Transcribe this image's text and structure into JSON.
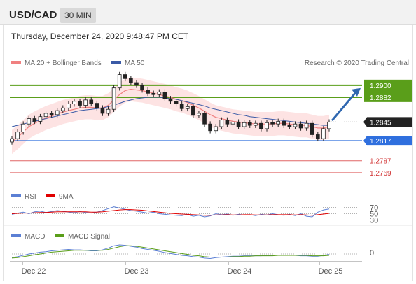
{
  "header": {
    "pair": "USD/CAD",
    "timeframe": "30 MIN"
  },
  "timestamp": "Thursday, December 24, 2020 9:48:47 PM CET",
  "legend": {
    "ma20_bb": "MA 20 + Bollinger Bands",
    "ma50": "MA 50",
    "research": "Research © 2020 Trading Central",
    "rsi": "RSI",
    "rsi_ma": "9MA",
    "macd": "MACD",
    "macd_signal": "MACD Signal"
  },
  "colors": {
    "ma20": "#f08080",
    "ma50": "#3a5aa6",
    "bands": "#fde0e0",
    "resistance": "#5a9e1a",
    "pivot": "#2f6fde",
    "support": "#e06666",
    "up_candle": "#ffffff",
    "down_candle": "#222222",
    "arrow": "#2f67b0"
  },
  "chart_data": [
    {
      "type": "candlestick",
      "pair": "USD/CAD",
      "x_ticks": [
        "Dec 22",
        "Dec 23",
        "Dec 24",
        "Dec 25"
      ],
      "ylim": [
        1.275,
        1.2925
      ],
      "last_price": 1.2845,
      "levels": {
        "resistance": [
          1.29,
          1.2882
        ],
        "pivot": 1.2817,
        "support": [
          1.2787,
          1.2769
        ]
      },
      "close": [
        1.282,
        1.283,
        1.2842,
        1.285,
        1.2846,
        1.2853,
        1.2858,
        1.2856,
        1.2862,
        1.2866,
        1.2872,
        1.2876,
        1.287,
        1.2878,
        1.2873,
        1.2866,
        1.2858,
        1.2864,
        1.2896,
        1.2916,
        1.291,
        1.2904,
        1.29,
        1.2893,
        1.2888,
        1.2886,
        1.289,
        1.288,
        1.2876,
        1.2872,
        1.2865,
        1.2868,
        1.2855,
        1.2858,
        1.2842,
        1.2832,
        1.2838,
        1.2848,
        1.2842,
        1.2845,
        1.2838,
        1.2844,
        1.284,
        1.2843,
        1.2835,
        1.2844,
        1.2842,
        1.2846,
        1.284,
        1.2838,
        1.2842,
        1.2836,
        1.2843,
        1.2826,
        1.282,
        1.2835,
        1.2845
      ],
      "ma20": [
        1.2815,
        1.2822,
        1.283,
        1.2838,
        1.2843,
        1.2847,
        1.2851,
        1.2854,
        1.2857,
        1.286,
        1.2862,
        1.2864,
        1.2866,
        1.2867,
        1.2867,
        1.2866,
        1.2866,
        1.287,
        1.2878,
        1.2886,
        1.2892,
        1.2894,
        1.2893,
        1.2892,
        1.289,
        1.2888,
        1.2886,
        1.2884,
        1.2882,
        1.2879,
        1.2877,
        1.2874,
        1.287,
        1.2866,
        1.2861,
        1.2856,
        1.2852,
        1.285,
        1.2848,
        1.2846,
        1.2845,
        1.2844,
        1.2843,
        1.2842,
        1.2842,
        1.2842,
        1.2842,
        1.2843,
        1.2843,
        1.2842,
        1.2841,
        1.284,
        1.284,
        1.2838,
        1.2836,
        1.2836,
        1.2838
      ],
      "ma50": [
        1.2838,
        1.284,
        1.2842,
        1.2844,
        1.2846,
        1.2848,
        1.285,
        1.2852,
        1.2854,
        1.2856,
        1.2858,
        1.286,
        1.2862,
        1.2863,
        1.2864,
        1.2865,
        1.2866,
        1.2868,
        1.287,
        1.2873,
        1.2876,
        1.2878,
        1.288,
        1.2881,
        1.2882,
        1.2882,
        1.2882,
        1.2881,
        1.288,
        1.2879,
        1.2877,
        1.2875,
        1.2873,
        1.2871,
        1.2869,
        1.2866,
        1.2864,
        1.2862,
        1.286,
        1.2858,
        1.2856,
        1.2855,
        1.2853,
        1.2852,
        1.2851,
        1.285,
        1.2849,
        1.2848,
        1.2847,
        1.2846,
        1.2845,
        1.2844,
        1.2843,
        1.2842,
        1.2841,
        1.284,
        1.284
      ]
    },
    {
      "type": "line",
      "name": "RSI",
      "ticks": [
        70,
        50,
        30
      ],
      "rsi": [
        48,
        52,
        55,
        50,
        56,
        58,
        54,
        57,
        60,
        58,
        55,
        53,
        57,
        54,
        52,
        55,
        60,
        66,
        72,
        68,
        64,
        60,
        58,
        55,
        52,
        55,
        50,
        48,
        46,
        45,
        44,
        48,
        42,
        45,
        40,
        43,
        50,
        47,
        49,
        45,
        48,
        46,
        47,
        44,
        48,
        46,
        50,
        47,
        45,
        48,
        44,
        50,
        42,
        40,
        55,
        62,
        65
      ],
      "ma9": [
        50,
        51,
        52,
        52,
        53,
        54,
        54,
        55,
        56,
        56,
        56,
        56,
        56,
        56,
        55,
        55,
        56,
        58,
        60,
        62,
        63,
        63,
        62,
        61,
        59,
        57,
        55,
        53,
        51,
        50,
        49,
        48,
        47,
        46,
        45,
        45,
        46,
        46,
        47,
        46,
        46,
        47,
        47,
        46,
        46,
        46,
        47,
        47,
        47,
        47,
        46,
        47,
        46,
        45,
        47,
        49,
        51
      ]
    },
    {
      "type": "line",
      "name": "MACD",
      "ticks": [
        0
      ],
      "macd": [
        -8,
        -6,
        -3,
        0,
        2,
        4,
        5,
        7,
        8,
        9,
        10,
        9,
        9,
        8,
        7,
        7,
        9,
        13,
        18,
        20,
        19,
        17,
        15,
        12,
        10,
        8,
        6,
        3,
        1,
        -1,
        -3,
        -4,
        -6,
        -7,
        -9,
        -10,
        -8,
        -7,
        -6,
        -5,
        -5,
        -4,
        -4,
        -4,
        -4,
        -3,
        -3,
        -3,
        -3,
        -3,
        -3,
        -4,
        -4,
        -5,
        -5,
        -3,
        -1
      ],
      "signal": [
        -9,
        -8,
        -6,
        -4,
        -2,
        0,
        2,
        4,
        5,
        6,
        7,
        8,
        8,
        8,
        8,
        8,
        8,
        10,
        13,
        16,
        18,
        18,
        17,
        15,
        13,
        11,
        9,
        7,
        5,
        3,
        1,
        -1,
        -3,
        -4,
        -6,
        -7,
        -7,
        -7,
        -7,
        -6,
        -6,
        -5,
        -5,
        -4,
        -4,
        -4,
        -4,
        -3,
        -3,
        -3,
        -3,
        -3,
        -3,
        -4,
        -4,
        -4,
        -3
      ]
    }
  ]
}
